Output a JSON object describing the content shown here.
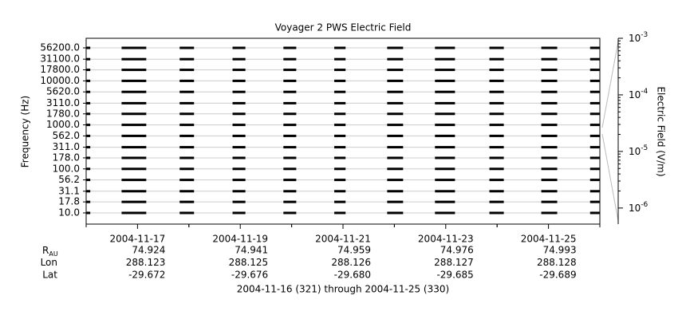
{
  "chart_data": {
    "type": "spectrogram",
    "title": "Voyager 2 PWS Electric Field",
    "ylabel": "Frequency (Hz)",
    "y2label": "Electric Field (V/m)",
    "log_y": true,
    "grid": true,
    "color": "#000000",
    "xlim": [
      321,
      331
    ],
    "xticks": [
      {
        "value": 322,
        "label": "2004-11-17"
      },
      {
        "value": 324,
        "label": "2004-11-19"
      },
      {
        "value": 326,
        "label": "2004-11-21"
      },
      {
        "value": 328,
        "label": "2004-11-23"
      },
      {
        "value": 330,
        "label": "2004-11-25"
      }
    ],
    "ylim": [
      5.57,
      92800
    ],
    "yticks": [
      {
        "value": 10,
        "label": "10.0"
      },
      {
        "value": 17.8,
        "label": "17.8"
      },
      {
        "value": 31.1,
        "label": "31.1"
      },
      {
        "value": 56.2,
        "label": "56.2"
      },
      {
        "value": 100,
        "label": "100.0"
      },
      {
        "value": 178,
        "label": "178.0"
      },
      {
        "value": 311,
        "label": "311.0"
      },
      {
        "value": 562,
        "label": "562.0"
      },
      {
        "value": 1000,
        "label": "1000.0"
      },
      {
        "value": 1780,
        "label": "1780.0"
      },
      {
        "value": 3110,
        "label": "3110.0"
      },
      {
        "value": 5620,
        "label": "5620.0"
      },
      {
        "value": 10000,
        "label": "10000.0"
      },
      {
        "value": 17800,
        "label": "17800.0"
      },
      {
        "value": 31100,
        "label": "31100.0"
      },
      {
        "value": 56200,
        "label": "56200.0"
      }
    ],
    "y2lim": [
      5.2e-07,
      0.001
    ],
    "y2ticks": [
      {
        "value": 1e-06,
        "label": "10",
        "exponent": "-6"
      },
      {
        "value": 1e-05,
        "label": "10",
        "exponent": "-5"
      },
      {
        "value": 0.0001,
        "label": "10",
        "exponent": "-4"
      },
      {
        "value": 0.001,
        "label": "10",
        "exponent": "-3"
      }
    ],
    "segments": [
      [
        321.0,
        321.08
      ],
      [
        321.69,
        322.17
      ],
      [
        322.82,
        323.1
      ],
      [
        323.85,
        324.1
      ],
      [
        324.84,
        325.09
      ],
      [
        325.83,
        326.05
      ],
      [
        326.86,
        327.17
      ],
      [
        327.79,
        328.18
      ],
      [
        328.85,
        329.13
      ],
      [
        329.86,
        330.17
      ],
      [
        330.81,
        331.0
      ]
    ],
    "ephemeris": {
      "rows": [
        {
          "label": "R",
          "sub": "AU",
          "values": [
            "74.924",
            "74.941",
            "74.959",
            "74.976",
            "74.993"
          ]
        },
        {
          "label": "Lon",
          "values": [
            "288.123",
            "288.125",
            "288.126",
            "288.127",
            "288.128"
          ]
        },
        {
          "label": "Lat",
          "values": [
            "-29.672",
            "-29.676",
            "-29.680",
            "-29.685",
            "-29.689"
          ]
        }
      ]
    },
    "footer": "2004-11-16 (321) through 2004-11-25 (330)"
  }
}
